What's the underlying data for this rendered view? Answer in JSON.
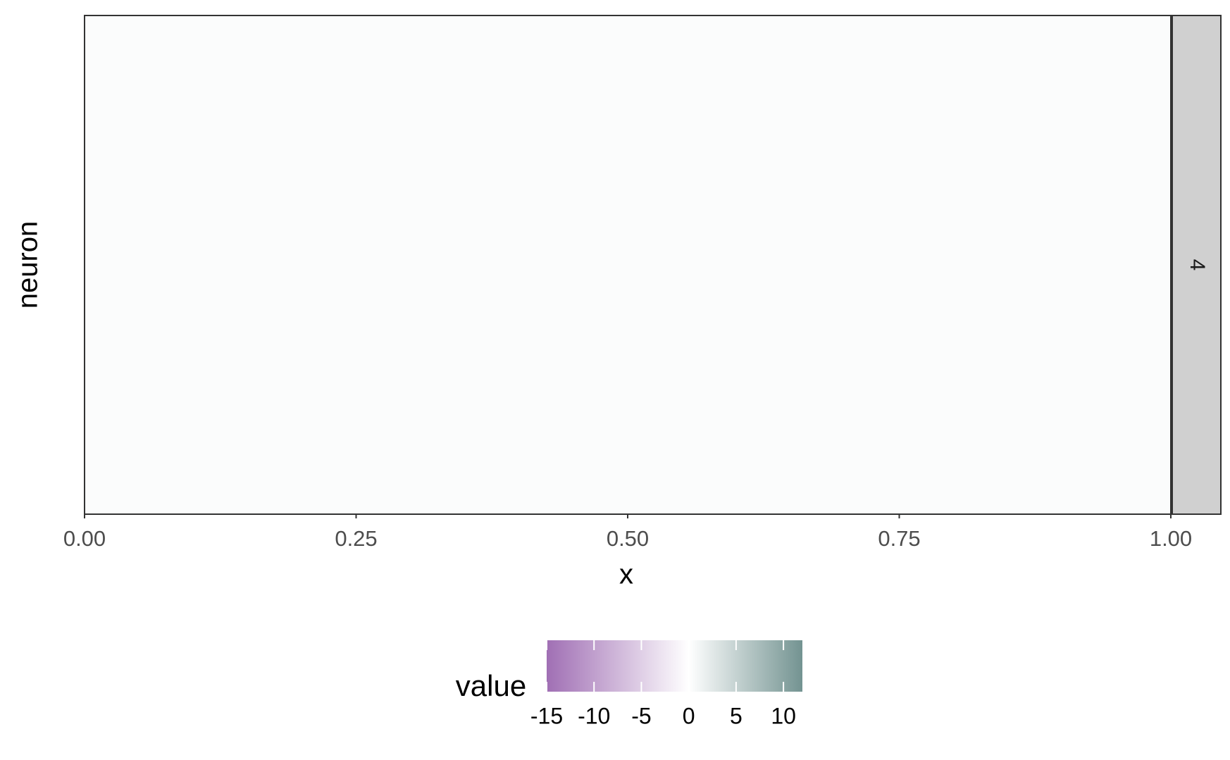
{
  "chart_data": {
    "type": "heatmap",
    "x_label": "x",
    "y_label": "neuron",
    "xlim": [
      0,
      1
    ],
    "xticks": [
      {
        "value": 0,
        "label": "0.00"
      },
      0.25,
      {
        "value": 0.5,
        "label": "0.50"
      },
      0.75,
      {
        "value": 1,
        "label": "1.00"
      }
    ],
    "facet_label": "4",
    "legend": {
      "title": "value",
      "limits": [
        -15,
        12
      ],
      "ticks": [
        -15,
        -10,
        -5,
        0,
        5,
        10
      ],
      "low_color": "#a06fb4",
      "mid_color": "#ffffff",
      "high_color": "#739391"
    }
  }
}
